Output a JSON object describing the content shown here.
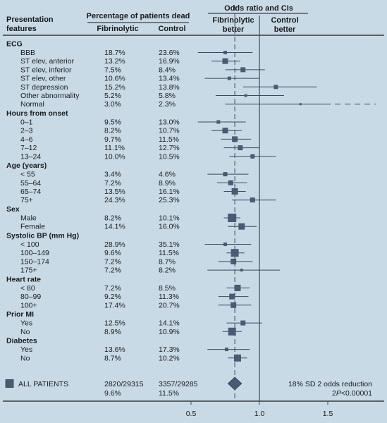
{
  "chart_data": {
    "type": "forest",
    "headers": {
      "features_line1": "Presentation",
      "features_line2": "features",
      "pct_title": "Percentage of patients dead",
      "col_fibrinolytic": "Fibrinolytic",
      "col_control": "Control",
      "or_title": "Odds ratio and CIs",
      "left_better_1": "Fibrinolytic",
      "left_better_2": "better",
      "right_better_1": "Control",
      "right_better_2": "better"
    },
    "x_axis": {
      "range": [
        0.0,
        1.85
      ],
      "ticks": [
        0.5,
        1.0,
        1.5
      ],
      "tick_labels": [
        "0.5",
        "1.0",
        "1.5"
      ],
      "reference_line": 1.0,
      "overall_line": 0.82
    },
    "groups": [
      {
        "title": "ECG",
        "rows": [
          {
            "label": "BBB",
            "fib": "18.7%",
            "ctl": "23.6%",
            "or": 0.75,
            "lo": 0.55,
            "hi": 0.95,
            "box": 5
          },
          {
            "label": "ST elev, anterior",
            "fib": "13.2%",
            "ctl": "16.9%",
            "or": 0.75,
            "lo": 0.65,
            "hi": 0.86,
            "box": 8
          },
          {
            "label": "ST elev, inferior",
            "fib": "7.5%",
            "ctl": "8.4%",
            "or": 0.88,
            "lo": 0.75,
            "hi": 1.04,
            "box": 7
          },
          {
            "label": "ST elev, other",
            "fib": "10.6%",
            "ctl": "13.4%",
            "or": 0.78,
            "lo": 0.6,
            "hi": 1.0,
            "box": 5
          },
          {
            "label": "ST depression",
            "fib": "15.2%",
            "ctl": "13.8%",
            "or": 1.12,
            "lo": 0.88,
            "hi": 1.42,
            "box": 6
          },
          {
            "label": "Other abnormality",
            "fib": "5.2%",
            "ctl": "5.8%",
            "or": 0.9,
            "lo": 0.68,
            "hi": 1.18,
            "box": 4
          },
          {
            "label": "Normal",
            "fib": "3.0%",
            "ctl": "2.3%",
            "or": 1.3,
            "lo": 0.75,
            "hi": 1.85,
            "box": 3,
            "arrow": true
          }
        ]
      },
      {
        "title": "Hours from onset",
        "rows": [
          {
            "label": "0–1",
            "fib": "9.5%",
            "ctl": "13.0%",
            "or": 0.7,
            "lo": 0.55,
            "hi": 0.9,
            "box": 5
          },
          {
            "label": "2–3",
            "fib": "8.2%",
            "ctl": "10.7%",
            "or": 0.75,
            "lo": 0.65,
            "hi": 0.87,
            "box": 8
          },
          {
            "label": "4–6",
            "fib": "9.7%",
            "ctl": "11.5%",
            "or": 0.82,
            "lo": 0.72,
            "hi": 0.94,
            "box": 8
          },
          {
            "label": "7–12",
            "fib": "11.1%",
            "ctl": "12.7%",
            "or": 0.86,
            "lo": 0.74,
            "hi": 1.0,
            "box": 7
          },
          {
            "label": "13–24",
            "fib": "10.0%",
            "ctl": "10.5%",
            "or": 0.95,
            "lo": 0.78,
            "hi": 1.12,
            "box": 6
          }
        ]
      },
      {
        "title": "Age (years)",
        "rows": [
          {
            "label": "< 55",
            "fib": "3.4%",
            "ctl": "4.6%",
            "or": 0.75,
            "lo": 0.62,
            "hi": 0.92,
            "box": 6
          },
          {
            "label": "55–64",
            "fib": "7.2%",
            "ctl": "8.9%",
            "or": 0.79,
            "lo": 0.69,
            "hi": 0.91,
            "box": 7
          },
          {
            "label": "65–74",
            "fib": "13.5%",
            "ctl": "16.1%",
            "or": 0.82,
            "lo": 0.74,
            "hi": 0.9,
            "box": 9
          },
          {
            "label": "75+",
            "fib": "24.3%",
            "ctl": "25.3%",
            "or": 0.95,
            "lo": 0.8,
            "hi": 1.12,
            "box": 7
          }
        ]
      },
      {
        "title": "Sex",
        "rows": [
          {
            "label": "Male",
            "fib": "8.2%",
            "ctl": "10.1%",
            "or": 0.8,
            "lo": 0.74,
            "hi": 0.86,
            "box": 12
          },
          {
            "label": "Female",
            "fib": "14.1%",
            "ctl": "16.0%",
            "or": 0.87,
            "lo": 0.77,
            "hi": 0.98,
            "box": 9
          }
        ]
      },
      {
        "title": "Systolic BP (mm Hg)",
        "rows": [
          {
            "label": "< 100",
            "fib": "28.9%",
            "ctl": "35.1%",
            "or": 0.75,
            "lo": 0.6,
            "hi": 0.94,
            "box": 5
          },
          {
            "label": "100–149",
            "fib": "9.6%",
            "ctl": "11.5%",
            "or": 0.82,
            "lo": 0.76,
            "hi": 0.89,
            "box": 11
          },
          {
            "label": "150–174",
            "fib": "7.2%",
            "ctl": "8.7%",
            "or": 0.81,
            "lo": 0.7,
            "hi": 0.95,
            "box": 8
          },
          {
            "label": "175+",
            "fib": "7.2%",
            "ctl": "8.2%",
            "or": 0.87,
            "lo": 0.62,
            "hi": 1.15,
            "box": 4
          }
        ]
      },
      {
        "title": "Heart rate",
        "rows": [
          {
            "label": "< 80",
            "fib": "7.2%",
            "ctl": "8.5%",
            "or": 0.84,
            "lo": 0.76,
            "hi": 0.93,
            "box": 9
          },
          {
            "label": "80–99",
            "fib": "9.2%",
            "ctl": "11.3%",
            "or": 0.8,
            "lo": 0.7,
            "hi": 0.92,
            "box": 8
          },
          {
            "label": "100+",
            "fib": "17.4%",
            "ctl": "20.7%",
            "or": 0.81,
            "lo": 0.7,
            "hi": 0.94,
            "box": 8
          }
        ]
      },
      {
        "title": "Prior MI",
        "rows": [
          {
            "label": "Yes",
            "fib": "12.5%",
            "ctl": "14.1%",
            "or": 0.88,
            "lo": 0.76,
            "hi": 1.02,
            "box": 7
          },
          {
            "label": "No",
            "fib": "8.9%",
            "ctl": "10.9%",
            "or": 0.8,
            "lo": 0.73,
            "hi": 0.87,
            "box": 11
          }
        ]
      },
      {
        "title": "Diabetes",
        "rows": [
          {
            "label": "Yes",
            "fib": "13.6%",
            "ctl": "17.3%",
            "or": 0.76,
            "lo": 0.62,
            "hi": 0.93,
            "box": 5
          },
          {
            "label": "No",
            "fib": "8.7%",
            "ctl": "10.2%",
            "or": 0.84,
            "lo": 0.77,
            "hi": 0.91,
            "box": 10
          }
        ]
      }
    ],
    "overall": {
      "label": "ALL PATIENTS",
      "fib_line1": "2820/29315",
      "fib_line2": "9.6%",
      "ctl_line1": "3357/29285",
      "ctl_line2": "11.5%",
      "or": 0.82,
      "lo": 0.77,
      "hi": 0.87,
      "note_line1": "18% SD 2 odds reduction",
      "note_line2_prefix": "2",
      "note_line2_italic": "P",
      "note_line2_suffix": "<0.00001"
    },
    "colors": {
      "background": "#c8dae6",
      "marker": "#4a5a72",
      "line": "#3a4a5e",
      "text": "#1a1a1a"
    }
  }
}
